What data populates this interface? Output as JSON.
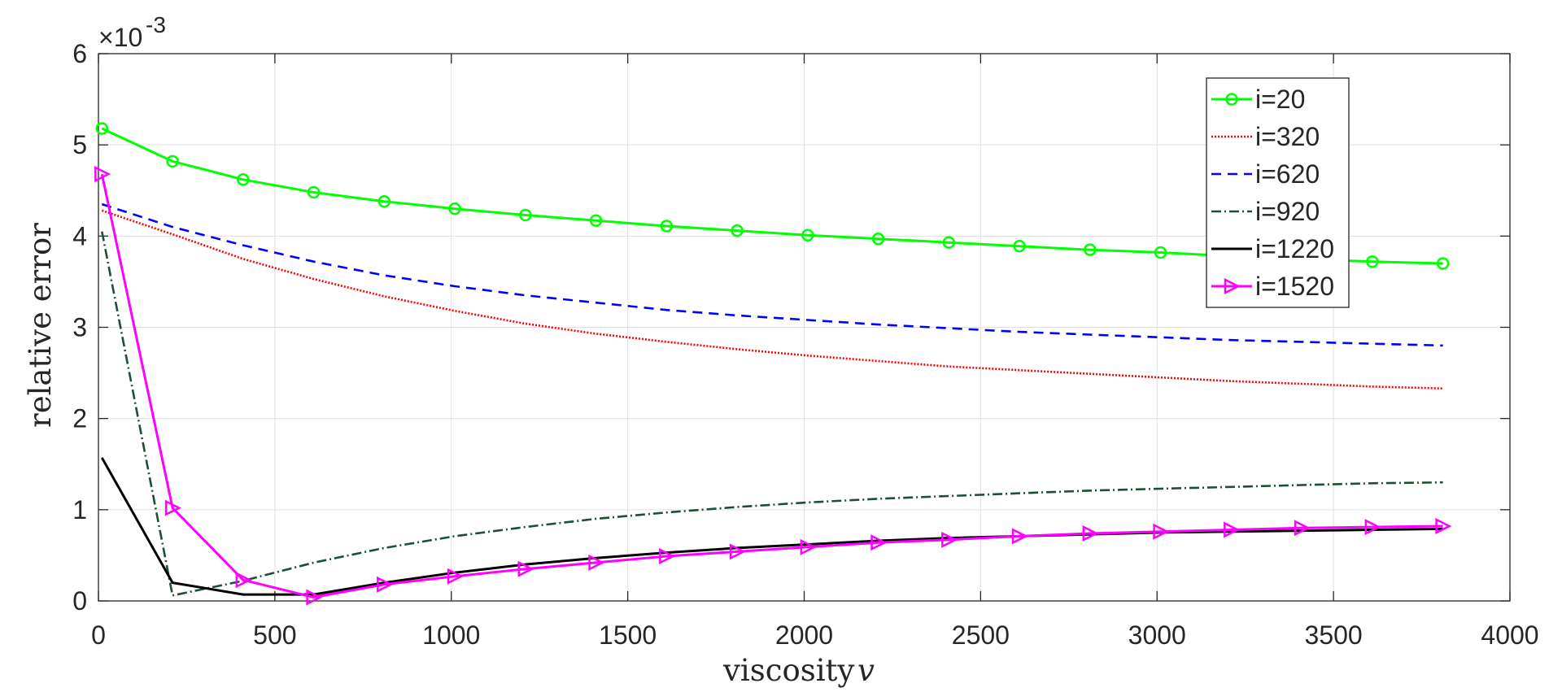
{
  "chart_data": {
    "type": "line",
    "xlabel": "viscosity",
    "xlabel_symbol": "v",
    "ylabel": "relative error",
    "y_exponent_base": "×10",
    "y_exponent_power": "-3",
    "xlim": [
      0,
      4000
    ],
    "ylim": [
      0,
      6
    ],
    "xticks": [
      0,
      500,
      1000,
      1500,
      2000,
      2500,
      3000,
      3500,
      4000
    ],
    "yticks": [
      0,
      1,
      2,
      3,
      4,
      5,
      6
    ],
    "grid": true,
    "legend_position": "top-right",
    "x": [
      10,
      210,
      410,
      610,
      810,
      1010,
      1210,
      1410,
      1610,
      1810,
      2010,
      2210,
      2410,
      2610,
      2810,
      3010,
      3210,
      3410,
      3610,
      3810
    ],
    "series": [
      {
        "name": "i=20",
        "color": "#00ff00",
        "style": "solid",
        "marker": "circle",
        "values": [
          5.18,
          4.82,
          4.62,
          4.48,
          4.38,
          4.3,
          4.23,
          4.17,
          4.11,
          4.06,
          4.01,
          3.97,
          3.93,
          3.89,
          3.85,
          3.82,
          3.78,
          3.75,
          3.72,
          3.7
        ]
      },
      {
        "name": "i=320",
        "color": "#ff0000",
        "style": "dotted",
        "marker": "none",
        "values": [
          4.28,
          4.02,
          3.75,
          3.53,
          3.34,
          3.18,
          3.04,
          2.93,
          2.84,
          2.76,
          2.69,
          2.63,
          2.57,
          2.53,
          2.49,
          2.45,
          2.41,
          2.38,
          2.35,
          2.33
        ]
      },
      {
        "name": "i=620",
        "color": "#0000ff",
        "style": "dashed",
        "marker": "none",
        "values": [
          4.35,
          4.1,
          3.9,
          3.72,
          3.57,
          3.45,
          3.35,
          3.27,
          3.19,
          3.13,
          3.08,
          3.03,
          2.99,
          2.95,
          2.92,
          2.89,
          2.86,
          2.84,
          2.82,
          2.8
        ]
      },
      {
        "name": "i=920",
        "color": "#1f4f32",
        "style": "dashdot",
        "marker": "none",
        "values": [
          4.05,
          0.06,
          0.22,
          0.42,
          0.58,
          0.71,
          0.81,
          0.9,
          0.97,
          1.03,
          1.08,
          1.12,
          1.15,
          1.18,
          1.21,
          1.23,
          1.25,
          1.27,
          1.29,
          1.3
        ]
      },
      {
        "name": "i=1220",
        "color": "#000000",
        "style": "solid",
        "marker": "none",
        "values": [
          1.57,
          0.2,
          0.07,
          0.07,
          0.2,
          0.31,
          0.4,
          0.47,
          0.53,
          0.58,
          0.62,
          0.66,
          0.69,
          0.71,
          0.73,
          0.75,
          0.76,
          0.77,
          0.78,
          0.79
        ]
      },
      {
        "name": "i=1520",
        "color": "#ff00ff",
        "style": "solid",
        "marker": "triangle-right",
        "values": [
          4.68,
          1.02,
          0.23,
          0.04,
          0.18,
          0.27,
          0.35,
          0.42,
          0.49,
          0.54,
          0.59,
          0.64,
          0.67,
          0.71,
          0.74,
          0.76,
          0.78,
          0.8,
          0.81,
          0.82
        ]
      }
    ]
  }
}
